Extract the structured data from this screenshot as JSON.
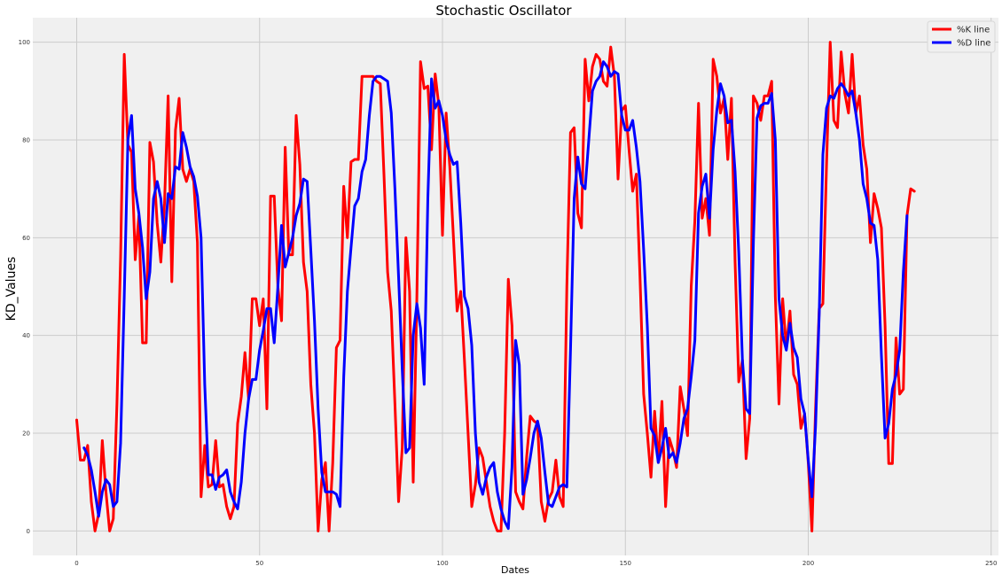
{
  "chart_data": {
    "type": "line",
    "title": "Stochastic Oscillator",
    "xlabel": "Dates",
    "ylabel": "KD_Values",
    "xlim": [
      -12,
      252
    ],
    "ylim": [
      -5,
      105
    ],
    "xticks": [
      0,
      50,
      100,
      150,
      200,
      250
    ],
    "yticks": [
      0,
      20,
      40,
      60,
      80,
      100
    ],
    "grid": true,
    "legend": "top-right",
    "background": "#f0f0f0",
    "grid_color": "#cbcbcb",
    "series": [
      {
        "name": "%K line",
        "color": "#ff0000",
        "x_start": 0,
        "values": [
          22.7,
          14.5,
          14.5,
          17.5,
          6,
          0,
          3.5,
          18.5,
          8,
          0,
          2.5,
          26,
          56,
          97.5,
          79,
          77.5,
          55.5,
          64.5,
          38.5,
          38.5,
          79.5,
          75.5,
          63,
          55,
          67,
          89,
          51,
          82,
          88.5,
          74,
          71.5,
          74,
          71.5,
          59,
          7,
          17.5,
          9,
          9.5,
          18.5,
          9,
          9.5,
          5,
          2.5,
          5,
          22,
          27.5,
          36.5,
          27,
          47.5,
          47.5,
          42,
          47.5,
          25,
          68.5,
          68.5,
          50,
          43,
          78.5,
          56.5,
          56.5,
          85,
          75,
          55,
          49,
          30,
          20,
          0,
          10.5,
          14,
          0,
          14,
          37.5,
          39,
          70.5,
          60,
          75.5,
          76,
          76,
          93,
          93,
          93,
          93,
          92,
          91.5,
          73,
          53,
          45,
          26,
          6,
          17,
          60,
          49,
          10,
          48,
          96,
          90.5,
          91,
          78,
          93.5,
          87,
          60.5,
          85.5,
          74.5,
          60,
          45,
          49,
          35,
          20,
          5,
          9.5,
          17,
          15,
          10,
          5,
          2,
          0,
          0,
          20,
          51.5,
          42,
          8,
          6,
          4.5,
          15,
          23.5,
          22.5,
          22,
          6,
          2,
          6.5,
          8,
          14.5,
          7,
          5,
          50,
          81.5,
          82.5,
          65,
          62,
          96.5,
          88,
          95,
          97.5,
          96.5,
          92,
          91,
          99,
          93,
          72,
          86,
          87,
          78,
          69.5,
          73,
          52,
          28,
          20,
          11,
          24.5,
          14,
          26.5,
          5,
          19,
          16.5,
          13,
          29.5,
          25,
          19.5,
          50,
          63.5,
          87.5,
          64,
          68,
          60.5,
          96.5,
          93,
          85.5,
          88.5,
          76,
          88.5,
          55,
          30.5,
          35,
          14.8,
          23,
          89,
          87.5,
          84,
          89,
          89,
          92,
          48,
          26,
          47.5,
          37.5,
          45,
          32,
          30,
          21,
          24,
          14,
          0,
          25,
          45.5,
          46.5,
          75,
          100,
          84,
          82.5,
          98,
          89.5,
          85.5,
          97.5,
          85.5,
          89,
          79,
          74,
          59,
          69,
          66,
          62,
          42,
          13.8,
          13.8,
          39.5,
          28,
          29,
          64.5,
          70,
          69.5
        ]
      },
      {
        "name": "%D line",
        "color": "#0000ff",
        "x_start": 2,
        "values": [
          17,
          15.5,
          12.5,
          8,
          3,
          8,
          10.5,
          9.5,
          5,
          6,
          18,
          48,
          80,
          85,
          70,
          65,
          58,
          47.5,
          53,
          68,
          71.5,
          68,
          59,
          69,
          68,
          74.5,
          74,
          81.5,
          78.5,
          74.5,
          72.5,
          68.5,
          60,
          30,
          11.5,
          11.5,
          8.5,
          11,
          11.5,
          12.5,
          8,
          6,
          4.5,
          10,
          20,
          27,
          31,
          31,
          37,
          41,
          45.5,
          45.5,
          38.5,
          50,
          62.5,
          54,
          57,
          60,
          64.5,
          67,
          72,
          71.5,
          57.5,
          43,
          25,
          12,
          8,
          8,
          8,
          7.5,
          5,
          31.5,
          49,
          58,
          66.5,
          68,
          73.5,
          76,
          85,
          92,
          93,
          93,
          92.5,
          92,
          85.5,
          70,
          52,
          33,
          16,
          17,
          40,
          46.5,
          41.5,
          30,
          68,
          92.5,
          86.5,
          88,
          85,
          80,
          77,
          75,
          75.5,
          63,
          48,
          45.5,
          38,
          20,
          10,
          7.5,
          11,
          13,
          14,
          8,
          4.5,
          2,
          0.5,
          13,
          39,
          34,
          7.5,
          10.5,
          15,
          20,
          22.5,
          19,
          12,
          5.5,
          5,
          7,
          9,
          9.5,
          9,
          37,
          68,
          76.5,
          71,
          70,
          80,
          90,
          92,
          93,
          96,
          95,
          93,
          94,
          93.5,
          85,
          82,
          82,
          84,
          78.5,
          71.5,
          57.5,
          42,
          21,
          19.5,
          14,
          17,
          21,
          15,
          16,
          14,
          18,
          23,
          25,
          31.5,
          39,
          65,
          70.5,
          73,
          64,
          78,
          86,
          91.5,
          89,
          83.5,
          84,
          73.5,
          57,
          35,
          25,
          24,
          59,
          84.5,
          87,
          87.5,
          87.5,
          89.5,
          80,
          47.5,
          40,
          37,
          42.5,
          37.5,
          35.5,
          27,
          24,
          14.5,
          7,
          21.5,
          44.5,
          77,
          86.5,
          89,
          88.5,
          90.5,
          91.5,
          90.5,
          89,
          90,
          85.5,
          80,
          71,
          68,
          63,
          62.5,
          55.5,
          36,
          19,
          22,
          29,
          32,
          37,
          53,
          64.5
        ]
      }
    ]
  }
}
